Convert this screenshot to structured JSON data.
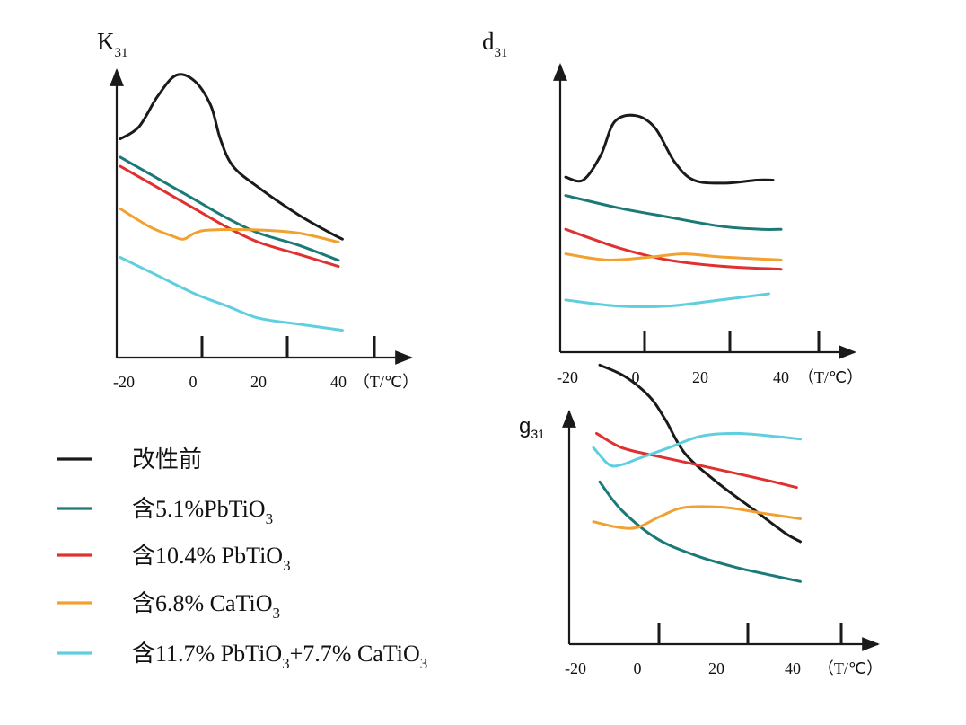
{
  "legend": [
    {
      "label": "改性前",
      "parts": [
        {
          "t": "改性前"
        }
      ],
      "color": "#1a1a1a"
    },
    {
      "label": "含5.1%PbTiO3",
      "parts": [
        {
          "t": "含5.1%PbTiO"
        },
        {
          "t": "3",
          "sub": true
        }
      ],
      "color": "#1b7a78"
    },
    {
      "label": " 含10.4% PbTiO3",
      "parts": [
        {
          "t": " 含10.4% PbTiO"
        },
        {
          "t": "3",
          "sub": true
        }
      ],
      "color": "#e03030"
    },
    {
      "label": " 含6.8% CaTiO3",
      "parts": [
        {
          "t": " 含6.8% CaTiO"
        },
        {
          "t": "3",
          "sub": true
        }
      ],
      "color": "#f2a030"
    },
    {
      "label": "含11.7% PbTiO3+7.7% CaTiO3",
      "parts": [
        {
          "t": "含11.7% PbTiO"
        },
        {
          "t": "3",
          "sub": true
        },
        {
          "t": "+7.7% CaTiO"
        },
        {
          "t": "3",
          "sub": true
        }
      ],
      "color": "#5fcfe0"
    }
  ],
  "chart_data": [
    {
      "type": "line",
      "ylabel": "K31",
      "ylabel_main": "K",
      "ylabel_sub": "31",
      "xlabel": "（T/℃）",
      "x_ticks": [
        "-20",
        "0",
        "20",
        "40"
      ],
      "grid": false,
      "series": [
        {
          "name": "改性前",
          "color": "#1a1a1a",
          "points": [
            [
              -20,
              0.72
            ],
            [
              -15,
              0.76
            ],
            [
              -10,
              0.86
            ],
            [
              -5,
              0.93
            ],
            [
              0,
              0.91
            ],
            [
              5,
              0.83
            ],
            [
              8,
              0.72
            ],
            [
              12,
              0.63
            ],
            [
              20,
              0.56
            ],
            [
              30,
              0.47
            ],
            [
              38,
              0.41
            ],
            [
              41,
              0.39
            ]
          ]
        },
        {
          "name": "含5.1%PbTiO3",
          "color": "#1b7a78",
          "points": [
            [
              -20,
              0.66
            ],
            [
              -10,
              0.59
            ],
            [
              0,
              0.52
            ],
            [
              10,
              0.46
            ],
            [
              20,
              0.41
            ],
            [
              30,
              0.37
            ],
            [
              40,
              0.32
            ]
          ]
        },
        {
          "name": "含10.4% PbTiO3",
          "color": "#e03030",
          "points": [
            [
              -20,
              0.63
            ],
            [
              -10,
              0.56
            ],
            [
              0,
              0.49
            ],
            [
              10,
              0.43
            ],
            [
              20,
              0.38
            ],
            [
              30,
              0.34
            ],
            [
              40,
              0.3
            ]
          ]
        },
        {
          "name": "含6.8% CaTiO3",
          "color": "#f2a030",
          "points": [
            [
              -20,
              0.49
            ],
            [
              -12,
              0.43
            ],
            [
              -6,
              0.4
            ],
            [
              -3,
              0.39
            ],
            [
              0,
              0.41
            ],
            [
              5,
              0.42
            ],
            [
              20,
              0.42
            ],
            [
              30,
              0.41
            ],
            [
              40,
              0.38
            ]
          ]
        },
        {
          "name": "含11.7% PbTiO3+7.7% CaTiO3",
          "color": "#5fcfe0",
          "points": [
            [
              -20,
              0.33
            ],
            [
              -10,
              0.27
            ],
            [
              0,
              0.21
            ],
            [
              10,
              0.17
            ],
            [
              20,
              0.13
            ],
            [
              30,
              0.11
            ],
            [
              41,
              0.09
            ]
          ]
        }
      ]
    },
    {
      "type": "line",
      "ylabel": "d31",
      "ylabel_main": "d",
      "ylabel_sub": "31",
      "xlabel": "（T/℃）",
      "x_ticks": [
        "-20",
        "0",
        "20",
        "40"
      ],
      "grid": false,
      "series": [
        {
          "name": "改性前",
          "color": "#1a1a1a",
          "points": [
            [
              -20,
              0.57
            ],
            [
              -15,
              0.56
            ],
            [
              -10,
              0.64
            ],
            [
              -6,
              0.75
            ],
            [
              0,
              0.77
            ],
            [
              6,
              0.73
            ],
            [
              12,
              0.62
            ],
            [
              18,
              0.56
            ],
            [
              26,
              0.55
            ],
            [
              34,
              0.56
            ],
            [
              38,
              0.56
            ]
          ]
        },
        {
          "name": "含5.1%PbTiO3",
          "color": "#1b7a78",
          "points": [
            [
              -20,
              0.51
            ],
            [
              -5,
              0.47
            ],
            [
              10,
              0.44
            ],
            [
              25,
              0.41
            ],
            [
              35,
              0.4
            ],
            [
              40,
              0.4
            ]
          ]
        },
        {
          "name": "含10.4% PbTiO3",
          "color": "#e03030",
          "points": [
            [
              -20,
              0.4
            ],
            [
              -5,
              0.34
            ],
            [
              10,
              0.3
            ],
            [
              25,
              0.28
            ],
            [
              40,
              0.27
            ]
          ]
        },
        {
          "name": "含6.8% CaTiO3",
          "color": "#f2a030",
          "points": [
            [
              -20,
              0.32
            ],
            [
              -8,
              0.3
            ],
            [
              5,
              0.31
            ],
            [
              15,
              0.32
            ],
            [
              25,
              0.31
            ],
            [
              40,
              0.3
            ]
          ]
        },
        {
          "name": "含11.7% PbTiO3+7.7% CaTiO3",
          "color": "#5fcfe0",
          "points": [
            [
              -20,
              0.17
            ],
            [
              -5,
              0.15
            ],
            [
              10,
              0.15
            ],
            [
              25,
              0.17
            ],
            [
              37,
              0.19
            ]
          ]
        }
      ]
    },
    {
      "type": "line",
      "ylabel": "g31",
      "ylabel_main": "g",
      "ylabel_sub": "31",
      "xlabel": "（T/℃）",
      "x_ticks": [
        "-20",
        "0",
        "20",
        "40"
      ],
      "grid": false,
      "series": [
        {
          "name": "改性前",
          "color": "#1a1a1a",
          "points": [
            [
              -12,
              0.98
            ],
            [
              -4,
              0.94
            ],
            [
              3,
              0.87
            ],
            [
              7,
              0.79
            ],
            [
              12,
              0.67
            ],
            [
              20,
              0.57
            ],
            [
              30,
              0.47
            ],
            [
              38,
              0.39
            ],
            [
              42,
              0.36
            ]
          ]
        },
        {
          "name": "含5.1%PbTiO3",
          "color": "#1b7a78",
          "points": [
            [
              -12,
              0.57
            ],
            [
              -5,
              0.47
            ],
            [
              5,
              0.37
            ],
            [
              15,
              0.31
            ],
            [
              25,
              0.27
            ],
            [
              35,
              0.24
            ],
            [
              42,
              0.22
            ]
          ]
        },
        {
          "name": "含10.4% PbTiO3",
          "color": "#e03030",
          "points": [
            [
              -13,
              0.74
            ],
            [
              -5,
              0.69
            ],
            [
              5,
              0.66
            ],
            [
              15,
              0.63
            ],
            [
              25,
              0.6
            ],
            [
              35,
              0.57
            ],
            [
              41,
              0.55
            ]
          ]
        },
        {
          "name": "含6.8% CaTiO3",
          "color": "#f2a030",
          "points": [
            [
              -14,
              0.43
            ],
            [
              -6,
              0.41
            ],
            [
              0,
              0.41
            ],
            [
              6,
              0.45
            ],
            [
              12,
              0.48
            ],
            [
              22,
              0.48
            ],
            [
              32,
              0.46
            ],
            [
              42,
              0.44
            ]
          ]
        },
        {
          "name": "含11.7% PbTiO3+7.7% CaTiO3",
          "color": "#5fcfe0",
          "points": [
            [
              -14,
              0.69
            ],
            [
              -9,
              0.63
            ],
            [
              -5,
              0.63
            ],
            [
              0,
              0.65
            ],
            [
              8,
              0.69
            ],
            [
              16,
              0.73
            ],
            [
              25,
              0.74
            ],
            [
              35,
              0.73
            ],
            [
              42,
              0.72
            ]
          ]
        }
      ]
    }
  ]
}
